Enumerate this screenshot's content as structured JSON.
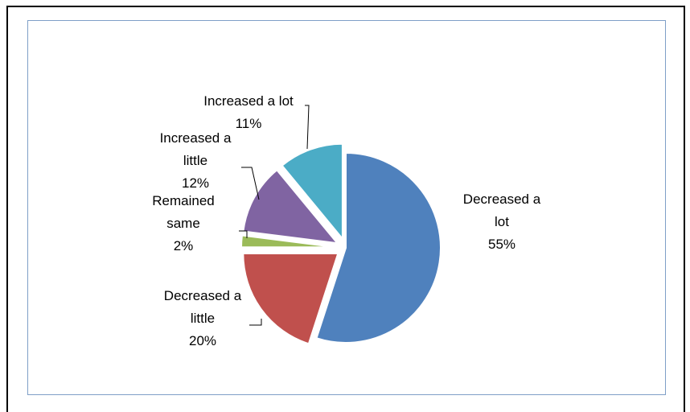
{
  "chart_data": {
    "type": "pie",
    "title": "",
    "slices": [
      {
        "label": [
          "Decreased a",
          "lot"
        ],
        "name": "Decreased a lot",
        "value": 55,
        "pct_label": "55%",
        "color": "#4f81bd"
      },
      {
        "label": [
          "Decreased a",
          "little"
        ],
        "name": "Decreased a little",
        "value": 20,
        "pct_label": "20%",
        "color": "#c0504d"
      },
      {
        "label": [
          "Remained",
          "same"
        ],
        "name": "Remained same",
        "value": 2,
        "pct_label": "2%",
        "color": "#9bbb59"
      },
      {
        "label": [
          "Increased a",
          "little"
        ],
        "name": "Increased a little",
        "value": 12,
        "pct_label": "12%",
        "color": "#8064a2"
      },
      {
        "label": [
          "Increased a lot"
        ],
        "name": "Increased a lot",
        "value": 11,
        "pct_label": "11%",
        "color": "#4bacc6"
      }
    ]
  }
}
